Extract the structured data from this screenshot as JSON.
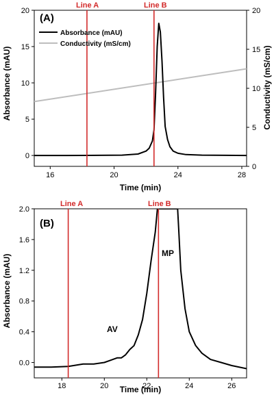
{
  "chart_data": [
    {
      "type": "line",
      "panel_label": "(A)",
      "xlabel": "Time (min)",
      "ylabel": "Absorbance (mAU)",
      "y2label": "Conductivity (mS/cm)",
      "xlim": [
        15,
        28.3
      ],
      "ylim": [
        -1.5,
        20
      ],
      "y2lim": [
        0,
        20
      ],
      "x_ticks": [
        16,
        20,
        24,
        28
      ],
      "y_ticks": [
        0,
        5,
        10,
        15,
        20
      ],
      "y2_ticks": [
        0,
        5,
        10,
        15,
        20
      ],
      "legend_position": "top-left",
      "series": [
        {
          "name": "Absorbance (mAU)",
          "axis": "left",
          "color": "#000000",
          "x": [
            15.0,
            17.0,
            19.0,
            20.5,
            21.5,
            22.0,
            22.2,
            22.4,
            22.5,
            22.6,
            22.7,
            22.8,
            22.9,
            23.0,
            23.1,
            23.2,
            23.35,
            23.5,
            23.7,
            24.0,
            24.5,
            25.5,
            27.0,
            28.3
          ],
          "y": [
            0.0,
            0.0,
            0.02,
            0.05,
            0.2,
            0.6,
            1.0,
            2.0,
            3.5,
            8.5,
            15.0,
            18.2,
            17.0,
            13.0,
            8.0,
            4.0,
            2.2,
            1.2,
            0.6,
            0.3,
            0.12,
            0.05,
            0.02,
            0.0
          ]
        },
        {
          "name": "Conductivity (mS/cm)",
          "axis": "right",
          "color": "#bdbdbd",
          "x": [
            15.0,
            28.3
          ],
          "y": [
            8.3,
            12.5
          ]
        }
      ],
      "vlines": [
        {
          "label": "Line A",
          "x": 18.3,
          "color": "#d22a2a"
        },
        {
          "label": "Line B",
          "x": 22.5,
          "color": "#d22a2a"
        }
      ]
    },
    {
      "type": "line",
      "panel_label": "(B)",
      "xlabel": "Time (min)",
      "ylabel": "Absorbance (mAU)",
      "xlim": [
        16.7,
        26.7
      ],
      "ylim": [
        -0.2,
        2.0
      ],
      "x_ticks": [
        18,
        20,
        22,
        24,
        26
      ],
      "y_ticks": [
        0.0,
        0.4,
        0.8,
        1.2,
        1.6,
        2.0
      ],
      "y_tick_labels": [
        "0.0",
        "0.4",
        "0.8",
        "1.2",
        "1.6",
        "2.0"
      ],
      "series": [
        {
          "name": "Absorbance (mAU)",
          "color": "#000000",
          "x": [
            16.7,
            17.5,
            18.3,
            19.0,
            19.5,
            20.0,
            20.3,
            20.6,
            20.8,
            21.0,
            21.2,
            21.4,
            21.6,
            21.8,
            22.0,
            22.2,
            22.4,
            22.5,
            22.55,
            23.45,
            23.5,
            23.6,
            23.8,
            24.0,
            24.3,
            24.6,
            25.0,
            25.5,
            26.0,
            26.7
          ],
          "y": [
            -0.06,
            -0.06,
            -0.05,
            -0.02,
            -0.02,
            0.0,
            0.03,
            0.06,
            0.06,
            0.1,
            0.17,
            0.22,
            0.36,
            0.56,
            0.9,
            1.32,
            1.7,
            2.0,
            2.0,
            2.0,
            1.75,
            1.2,
            0.7,
            0.4,
            0.22,
            0.12,
            0.04,
            0.0,
            -0.04,
            -0.08
          ]
        }
      ],
      "vlines": [
        {
          "label": "Line A",
          "x": 18.3,
          "color": "#d22a2a"
        },
        {
          "label": "Line B",
          "x": 22.55,
          "color": "#d22a2a"
        }
      ],
      "annotations": [
        {
          "text": "AV",
          "x": 20.2,
          "y": 0.2
        },
        {
          "text": "MP",
          "x": 23.2,
          "y": 1.25
        }
      ]
    }
  ]
}
